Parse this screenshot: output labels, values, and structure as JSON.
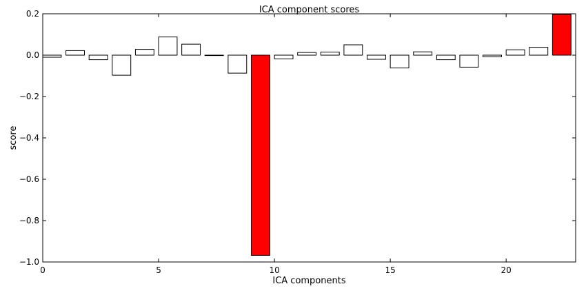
{
  "chart_data": {
    "type": "bar",
    "title": "ICA component scores",
    "xlabel": "ICA components",
    "ylabel": "score",
    "xlim": [
      0,
      23
    ],
    "ylim": [
      -1.0,
      0.2
    ],
    "x_ticks": [
      0,
      5,
      10,
      15,
      20
    ],
    "x_tick_labels": [
      "0",
      "5",
      "10",
      "15",
      "20"
    ],
    "y_ticks": [
      0.2,
      0.0,
      -0.2,
      -0.4,
      -0.6,
      -0.8,
      -1.0
    ],
    "y_tick_labels": [
      "0.2",
      "0.0",
      "−0.2",
      "−0.4",
      "−0.6",
      "−0.8",
      "−1.0"
    ],
    "grid": false,
    "bar_width": 0.8,
    "default_color": "#ffffff",
    "highlight_color": "#ff0000",
    "edge_color": "#000000",
    "bars": [
      {
        "x": 0,
        "value": -0.01
      },
      {
        "x": 1,
        "value": 0.022
      },
      {
        "x": 2,
        "value": -0.022
      },
      {
        "x": 3,
        "value": -0.097
      },
      {
        "x": 4,
        "value": 0.028
      },
      {
        "x": 5,
        "value": 0.088
      },
      {
        "x": 6,
        "value": 0.053
      },
      {
        "x": 7,
        "value": -0.002
      },
      {
        "x": 8,
        "value": -0.087
      },
      {
        "x": 9,
        "value": -0.968,
        "highlight": true
      },
      {
        "x": 10,
        "value": -0.018
      },
      {
        "x": 11,
        "value": 0.013
      },
      {
        "x": 12,
        "value": 0.015
      },
      {
        "x": 13,
        "value": 0.05
      },
      {
        "x": 14,
        "value": -0.02
      },
      {
        "x": 15,
        "value": -0.062
      },
      {
        "x": 16,
        "value": 0.016
      },
      {
        "x": 17,
        "value": -0.022
      },
      {
        "x": 18,
        "value": -0.058
      },
      {
        "x": 19,
        "value": -0.008
      },
      {
        "x": 20,
        "value": 0.026
      },
      {
        "x": 21,
        "value": 0.038
      },
      {
        "x": 22,
        "value": 0.197,
        "highlight": true
      }
    ]
  }
}
